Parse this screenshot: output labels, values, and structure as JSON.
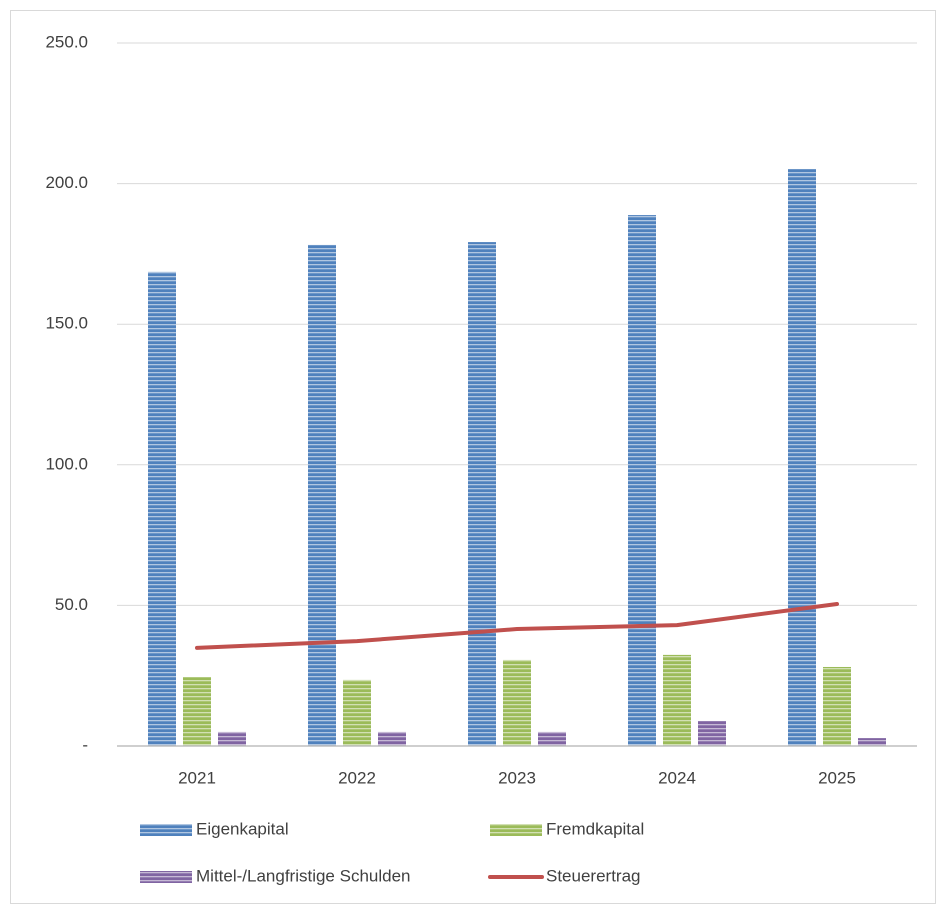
{
  "chart_data": {
    "type": "bar",
    "categories": [
      "2021",
      "2022",
      "2023",
      "2024",
      "2025"
    ],
    "series": [
      {
        "name": "Eigenkapital",
        "color": "#4f81bd",
        "values": [
          168.6,
          178.2,
          179.2,
          188.8,
          205.2
        ]
      },
      {
        "name": "Fremdkapital",
        "color": "#9bbb59",
        "values": [
          24.5,
          23.5,
          30.6,
          32.4,
          28.1
        ]
      },
      {
        "name": "Mittel-/Langfristige Schulden",
        "color": "#8064a2",
        "values": [
          5.0,
          5.0,
          5.0,
          8.9,
          2.8
        ]
      },
      {
        "name": "Steuerertrag",
        "color": "#c0504d",
        "type": "line",
        "values": [
          34.9,
          37.3,
          41.6,
          43.0,
          50.5
        ]
      }
    ],
    "ylim": [
      0,
      250
    ],
    "yticks": [
      {
        "value": 0,
        "label": "-"
      },
      {
        "value": 50,
        "label": "50.0"
      },
      {
        "value": 100,
        "label": "100.0"
      },
      {
        "value": 150,
        "label": "150.0"
      },
      {
        "value": 200,
        "label": "200.0"
      },
      {
        "value": 250,
        "label": "250.0"
      }
    ],
    "grid": true,
    "legend": "bottom"
  }
}
